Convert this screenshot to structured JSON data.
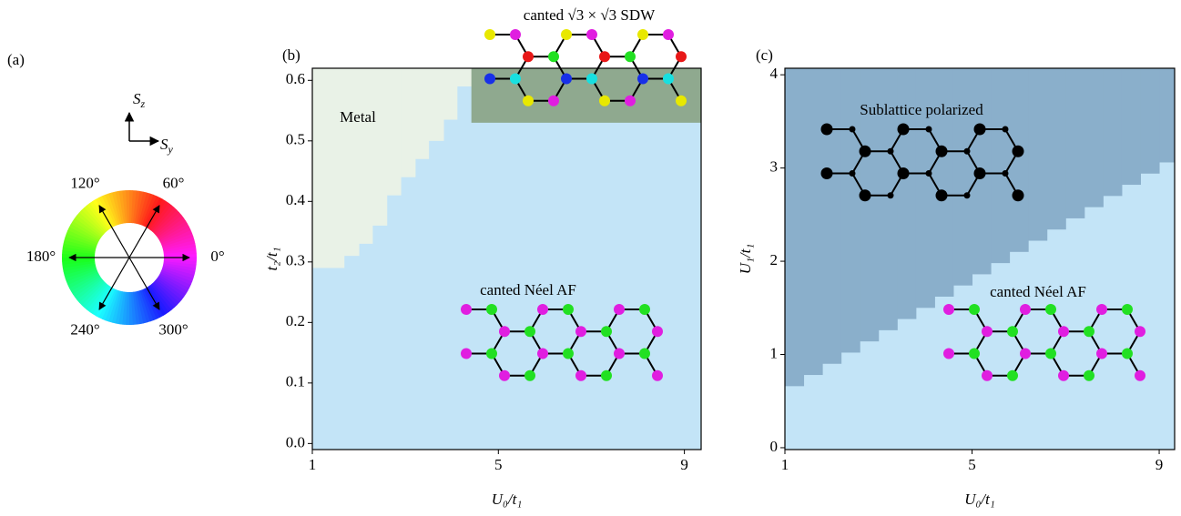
{
  "chart_data": [
    {
      "type": "colorwheel",
      "panel_label": "(a)",
      "vertical_axis_label": "Sz",
      "horizontal_axis_label": "Sy",
      "angles": [
        {
          "value": 0,
          "label": "0°"
        },
        {
          "value": 60,
          "label": "60°"
        },
        {
          "value": 120,
          "label": "120°"
        },
        {
          "value": 180,
          "label": "180°"
        },
        {
          "value": 240,
          "label": "240°"
        },
        {
          "value": 300,
          "label": "300°"
        }
      ]
    },
    {
      "type": "phase",
      "panel_label": "(b)",
      "xlabel": "U₀/t₁",
      "ylabel": "t₂/t₁",
      "xlim": [
        1,
        9.36
      ],
      "ylim": [
        -0.01,
        0.62
      ],
      "xticks": [
        1,
        5,
        9
      ],
      "yticks": [
        {
          "value": 0,
          "label": "0.0"
        },
        0.1,
        0.2,
        0.3,
        0.4,
        0.5,
        0.6
      ],
      "regions": [
        {
          "name": "canted Néel AF",
          "color": "#c3e4f7"
        },
        {
          "name": "Metal",
          "color": "#e9f2e7",
          "bins": [
            1,
            1.68,
            2.0,
            2.29,
            2.6,
            2.9,
            3.21,
            3.5,
            3.82,
            4.11,
            4.42
          ],
          "lower": [
            0.29,
            0.31,
            0.33,
            0.36,
            0.41,
            0.44,
            0.47,
            0.5,
            0.535,
            0.59
          ]
        },
        {
          "name": "canted √3 × √3 SDW",
          "color": "#8fa98f",
          "bins": [
            4.42,
            9.36
          ],
          "lower": [
            0.53
          ]
        }
      ]
    },
    {
      "type": "phase",
      "panel_label": "(c)",
      "xlabel": "U₀/t₁",
      "ylabel": "U₁/t₁",
      "xlim": [
        1,
        9.33
      ],
      "ylim": [
        -0.02,
        4.07
      ],
      "xticks": [
        1,
        5,
        9
      ],
      "yticks": [
        0,
        1,
        2,
        3,
        4
      ],
      "regions": [
        {
          "name": "canted Néel AF",
          "color": "#c3e4f7"
        },
        {
          "name": "Sublattice polarized",
          "color": "#8aafcb",
          "bins": [
            1.0,
            1.4,
            1.8,
            2.2,
            2.6,
            3.0,
            3.4,
            3.8,
            4.2,
            4.6,
            5.0,
            5.4,
            5.8,
            6.2,
            6.6,
            7.0,
            7.4,
            7.8,
            8.2,
            8.6,
            9.0,
            9.33
          ],
          "lower": [
            0.66,
            0.78,
            0.9,
            1.02,
            1.14,
            1.26,
            1.38,
            1.5,
            1.62,
            1.74,
            1.86,
            1.98,
            2.1,
            2.22,
            2.34,
            2.46,
            2.58,
            2.7,
            2.82,
            2.94,
            3.06
          ]
        }
      ]
    }
  ]
}
